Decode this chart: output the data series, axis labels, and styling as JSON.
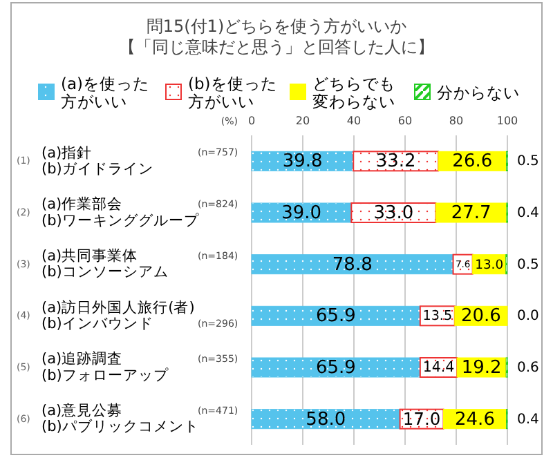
{
  "chart_data": {
    "type": "bar",
    "orientation": "horizontal",
    "stacked": true,
    "title": "問15(付1)どちらを使う方がいいか",
    "subtitle": "【「同じ意味だと思う」と回答した人に】",
    "xlabel": "(%)",
    "categories": [
      "(a)指針\n(b)ガイドライン",
      "(a)作業部会\n(b)ワーキンググループ",
      "(a)共同事業体\n(b)コンソーシアム",
      "(a)訪日外国人旅行(者)\n(b)インバウンド",
      "(a)追跡調査\n(b)フォローアップ",
      "(a)意見公募\n(b)パブリックコメント"
    ],
    "series": [
      {
        "name": "(a)を使った方がいい",
        "color": "#55c3ec",
        "values": [
          39.8,
          39.0,
          78.8,
          65.9,
          65.9,
          58.0
        ],
        "value_labels": [
          "39.8",
          "39.0",
          "78.8",
          "65.9",
          "65.9",
          "58.0"
        ]
      },
      {
        "name": "(b)を使った方がいい",
        "color": "#ee3333",
        "values": [
          33.2,
          33.0,
          7.6,
          13.5,
          14.4,
          17.0
        ],
        "value_labels": [
          "33.2",
          "33.0",
          "7.6",
          "13.5",
          "14.4",
          "17.0"
        ]
      },
      {
        "name": "どちらでも変わらない",
        "color": "#ffff00",
        "values": [
          26.6,
          27.7,
          13.0,
          20.6,
          19.2,
          24.6
        ],
        "value_labels": [
          "26.6",
          "27.7",
          "13.0",
          "20.6",
          "19.2",
          "24.6"
        ]
      },
      {
        "name": "分からない",
        "color": "#22cc22",
        "values": [
          0.5,
          0.4,
          0.5,
          0.0,
          0.6,
          0.4
        ],
        "value_labels": [
          "0.5",
          "0.4",
          "0.5",
          "0.0",
          "0.6",
          "0.4"
        ]
      }
    ],
    "xlim": [
      0,
      100
    ],
    "xticks": [
      0,
      20,
      40,
      60,
      80,
      100
    ],
    "grid": "x",
    "legend": "top",
    "annotations": [
      "(1)",
      "(n=757)",
      "(2)",
      "(n=824)",
      "(3)",
      "(n=184)",
      "(4)",
      "(n=296)",
      "(5)",
      "(n=355)",
      "(6)",
      "(n=471)"
    ]
  }
}
